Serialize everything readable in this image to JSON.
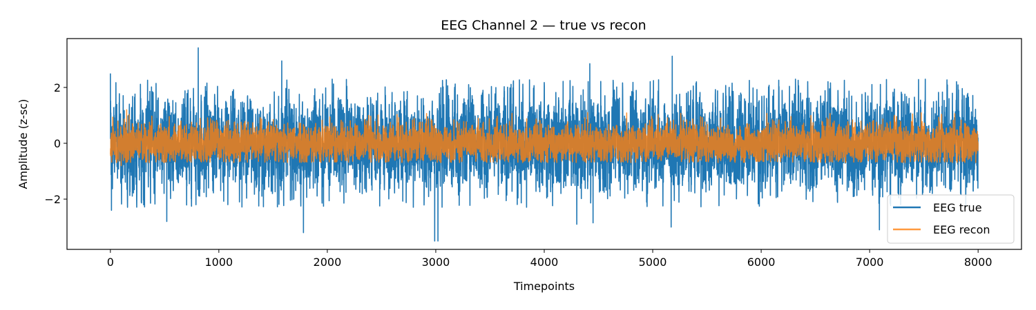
{
  "chart_data": {
    "type": "line",
    "title": "EEG Channel 2 — true vs recon",
    "xlabel": "Timepoints",
    "ylabel": "Amplitude (z-sc)",
    "xlim": [
      -400,
      8400
    ],
    "ylim": [
      -3.8,
      3.75
    ],
    "x_ticks": [
      0,
      1000,
      2000,
      3000,
      4000,
      5000,
      6000,
      7000,
      8000
    ],
    "x_tick_labels": [
      "0",
      "1000",
      "2000",
      "3000",
      "4000",
      "5000",
      "6000",
      "7000",
      "8000"
    ],
    "y_ticks": [
      -2,
      0,
      2
    ],
    "y_tick_labels": [
      "−2",
      "0",
      "2"
    ],
    "grid": false,
    "legend_position": "lower-right",
    "n_points": 8000,
    "series": [
      {
        "name": "EEG true",
        "color": "#1f77b4",
        "amplitude_envelope": [
          -2.0,
          2.0
        ],
        "extremes": [
          {
            "x": 810,
            "y": 3.42
          },
          {
            "x": 2990,
            "y": -3.5
          },
          {
            "x": 3020,
            "y": -3.5
          },
          {
            "x": 1780,
            "y": -3.2
          },
          {
            "x": 5170,
            "y": -3.0
          },
          {
            "x": 7090,
            "y": -3.1
          },
          {
            "x": 5180,
            "y": 3.12
          },
          {
            "x": 1580,
            "y": 2.95
          },
          {
            "x": 4420,
            "y": 2.85
          },
          {
            "x": 0,
            "y": 2.5
          },
          {
            "x": 10,
            "y": -2.4
          },
          {
            "x": 520,
            "y": -2.8
          },
          {
            "x": 4300,
            "y": -2.9
          },
          {
            "x": 4450,
            "y": -2.85
          }
        ]
      },
      {
        "name": "EEG recon",
        "color": "#ff7f0e",
        "amplitude_envelope": [
          -0.6,
          0.95
        ],
        "extremes": [
          {
            "x": 150,
            "y": 1.2
          },
          {
            "x": 4400,
            "y": 1.1
          },
          {
            "x": 2990,
            "y": -0.5
          },
          {
            "x": 100,
            "y": -0.8
          }
        ]
      }
    ]
  }
}
